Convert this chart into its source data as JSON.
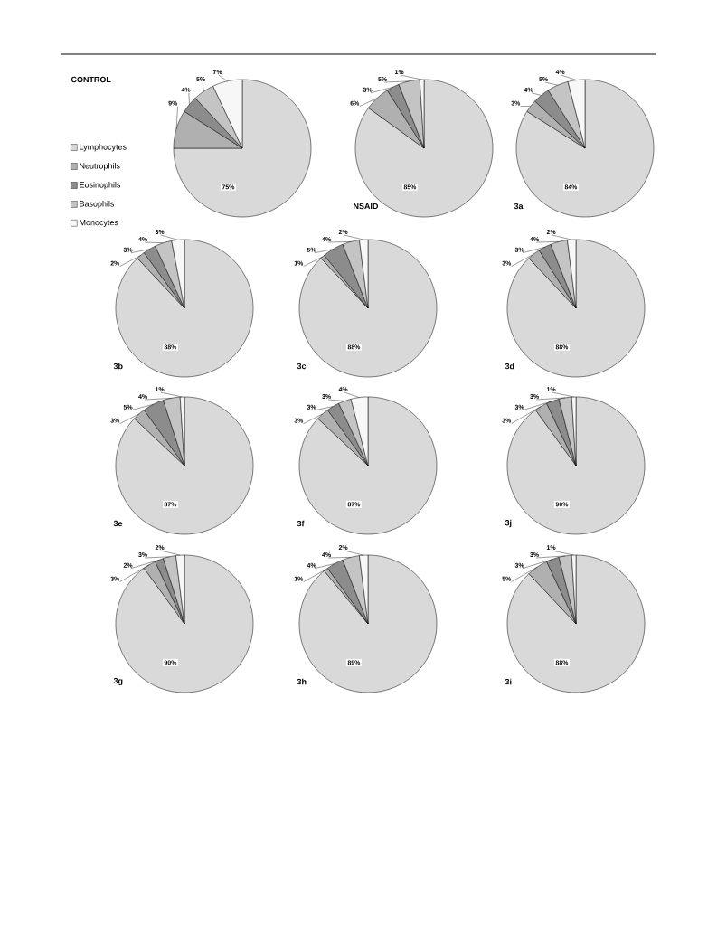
{
  "chart_data": [
    {
      "type": "pie",
      "title": "CONTROL",
      "categories": [
        "Lymphocytes",
        "Neutrophils",
        "Eosinophils",
        "Basophils",
        "Monocytes"
      ],
      "values": [
        75,
        9,
        4,
        5,
        7
      ],
      "value_labels": [
        "75%",
        "9%",
        "4%",
        "5%",
        "7%"
      ],
      "colors": [
        "#d9d9d9",
        "#b0b0b0",
        "#8c8c8c",
        "#c4c4c4",
        "#f7f7f7"
      ],
      "legend": "left"
    },
    {
      "type": "pie",
      "title": "NSAID",
      "categories": [
        null,
        null,
        null,
        null,
        null
      ],
      "values": [
        85,
        6,
        3,
        5,
        1
      ],
      "value_labels": [
        "85%",
        "6%",
        "3%",
        "5%",
        "1%"
      ],
      "colors": [
        "#d9d9d9",
        "#b0b0b0",
        "#8c8c8c",
        "#c4c4c4",
        "#f7f7f7"
      ]
    },
    {
      "type": "pie",
      "title": "3a",
      "categories": [
        null,
        null,
        null,
        null,
        null
      ],
      "values": [
        84,
        3,
        4,
        5,
        4
      ],
      "value_labels": [
        "84%",
        "3%",
        "4%",
        "5%",
        "4%"
      ],
      "colors": [
        "#d9d9d9",
        "#b0b0b0",
        "#8c8c8c",
        "#c4c4c4",
        "#f7f7f7"
      ]
    },
    {
      "type": "pie",
      "title": "3b",
      "categories": [
        null,
        null,
        null,
        null,
        null
      ],
      "values": [
        88,
        2,
        3,
        4,
        3
      ],
      "value_labels": [
        "88%",
        "2%",
        "3%",
        "4%",
        "3%"
      ],
      "colors": [
        "#d9d9d9",
        "#b0b0b0",
        "#8c8c8c",
        "#c4c4c4",
        "#f7f7f7"
      ]
    },
    {
      "type": "pie",
      "title": "3c",
      "categories": [
        null,
        null,
        null,
        null,
        null
      ],
      "values": [
        88,
        1,
        5,
        4,
        2
      ],
      "value_labels": [
        "88%",
        "1%",
        "5%",
        "4%",
        "2%"
      ],
      "colors": [
        "#d9d9d9",
        "#b0b0b0",
        "#8c8c8c",
        "#c4c4c4",
        "#f7f7f7"
      ]
    },
    {
      "type": "pie",
      "title": "3d",
      "categories": [
        null,
        null,
        null,
        null,
        null
      ],
      "values": [
        88,
        3,
        3,
        4,
        2
      ],
      "value_labels": [
        "88%",
        "3%",
        "3%",
        "4%",
        "2%"
      ],
      "colors": [
        "#d9d9d9",
        "#b0b0b0",
        "#8c8c8c",
        "#c4c4c4",
        "#f7f7f7"
      ]
    },
    {
      "type": "pie",
      "title": "3e",
      "categories": [
        null,
        null,
        null,
        null,
        null
      ],
      "values": [
        87,
        3,
        5,
        4,
        1
      ],
      "value_labels": [
        "87%",
        "3%",
        "5%",
        "4%",
        "1%"
      ],
      "colors": [
        "#d9d9d9",
        "#b0b0b0",
        "#8c8c8c",
        "#c4c4c4",
        "#f7f7f7"
      ]
    },
    {
      "type": "pie",
      "title": "3f",
      "categories": [
        null,
        null,
        null,
        null,
        null
      ],
      "values": [
        87,
        3,
        3,
        3,
        4
      ],
      "value_labels": [
        "87%",
        "3%",
        "3%",
        "3%",
        "4%"
      ],
      "colors": [
        "#d9d9d9",
        "#b0b0b0",
        "#8c8c8c",
        "#c4c4c4",
        "#f7f7f7"
      ]
    },
    {
      "type": "pie",
      "title": "3j",
      "categories": [
        null,
        null,
        null,
        null,
        null
      ],
      "values": [
        90,
        3,
        3,
        3,
        1
      ],
      "value_labels": [
        "90%",
        "3%",
        "3%",
        "3%",
        "1%"
      ],
      "colors": [
        "#d9d9d9",
        "#b0b0b0",
        "#8c8c8c",
        "#c4c4c4",
        "#f7f7f7"
      ]
    },
    {
      "type": "pie",
      "title": "3g",
      "categories": [
        null,
        null,
        null,
        null,
        null
      ],
      "values": [
        90,
        3,
        2,
        3,
        2
      ],
      "value_labels": [
        "90%",
        "3%",
        "2%",
        "3%",
        "2%"
      ],
      "colors": [
        "#d9d9d9",
        "#b0b0b0",
        "#8c8c8c",
        "#c4c4c4",
        "#f7f7f7"
      ]
    },
    {
      "type": "pie",
      "title": "3h",
      "categories": [
        null,
        null,
        null,
        null,
        null
      ],
      "values": [
        89,
        1,
        4,
        4,
        2
      ],
      "value_labels": [
        "89%",
        "1%",
        "4%",
        "4%",
        "2%"
      ],
      "colors": [
        "#d9d9d9",
        "#b0b0b0",
        "#8c8c8c",
        "#c4c4c4",
        "#f7f7f7"
      ]
    },
    {
      "type": "pie",
      "title": "3i",
      "categories": [
        null,
        null,
        null,
        null,
        null
      ],
      "values": [
        88,
        5,
        3,
        3,
        1
      ],
      "value_labels": [
        "88%",
        "5%",
        "3%",
        "3%",
        "1%"
      ],
      "colors": [
        "#d9d9d9",
        "#b0b0b0",
        "#8c8c8c",
        "#c4c4c4",
        "#f7f7f7"
      ]
    }
  ]
}
